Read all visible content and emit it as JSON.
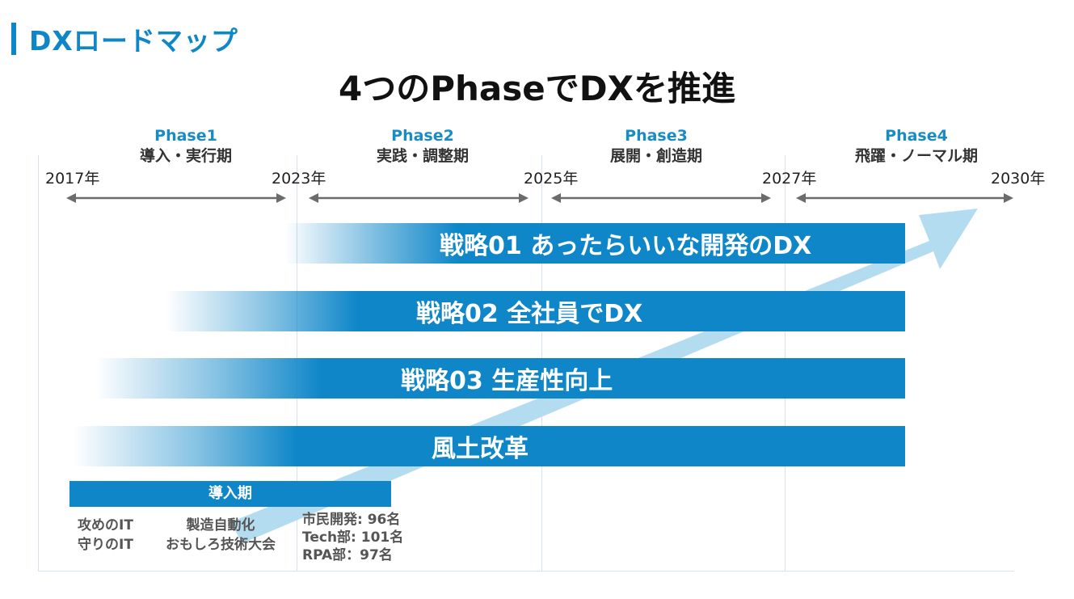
{
  "page_title": "DXロードマップ",
  "headline": "4つのPhaseでDXを推進",
  "phases": [
    {
      "label": "Phase1",
      "name": "導入・実行期"
    },
    {
      "label": "Phase2",
      "name": "実践・調整期"
    },
    {
      "label": "Phase3",
      "name": "展開・創造期"
    },
    {
      "label": "Phase4",
      "name": "飛躍・ノーマル期"
    }
  ],
  "years": [
    "2017年",
    "2023年",
    "2025年",
    "2027年",
    "2030年"
  ],
  "strategies": [
    "戦略01 あったらいいな開発のDX",
    "戦略02 全社員でDX",
    "戦略03 生産性向上",
    "風土改革"
  ],
  "intro_period": {
    "label": "導入期",
    "col1": [
      "攻めのIT",
      "守りのIT"
    ],
    "col2": [
      "製造自動化",
      "おもしろ技術大会"
    ],
    "stats": [
      "市民開発: 96名",
      "Tech部: 101名",
      "RPA部：97名"
    ]
  },
  "colors": {
    "accent": "#0e86c8",
    "arrow": "#b3dcf1",
    "timeline": "#6b6b6b"
  }
}
